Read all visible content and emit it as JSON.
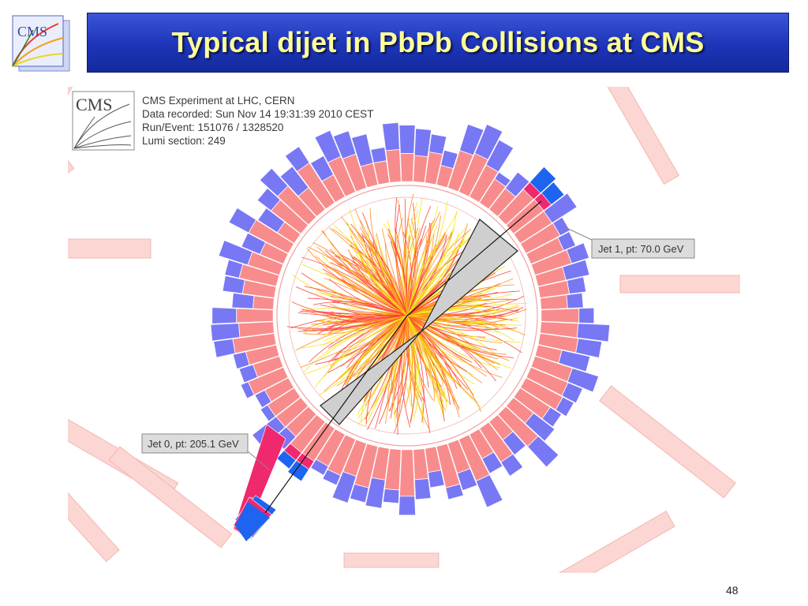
{
  "slide": {
    "title": "Typical dijet in PbPb Collisions at CMS",
    "page_number": "48",
    "logo_text": "CMS"
  },
  "event_display": {
    "logo_text": "CMS",
    "info_lines": [
      "CMS Experiment at LHC, CERN",
      "Data recorded: Sun Nov 14 19:31:39 2010 CEST",
      "Run/Event: 151076 / 1328520",
      "Lumi section: 249"
    ],
    "jets": [
      {
        "label": "Jet 1, pt: 70.0 GeV"
      },
      {
        "label": "Jet 0, pt: 205.1 GeV"
      }
    ]
  },
  "colors": {
    "title_bar": "#1d34b8",
    "title_text": "#ffff99",
    "ecal": "#f88c8c",
    "hcal": "#7878f5",
    "jet_ecal": "#f0286e",
    "jet_hcal": "#1e64f0",
    "muon_chamber": "#fbd6d2",
    "tracks_core": "#ff3a3a",
    "tracks_mid": "#ff8a1e",
    "tracks_outer": "#f2e40e"
  }
}
